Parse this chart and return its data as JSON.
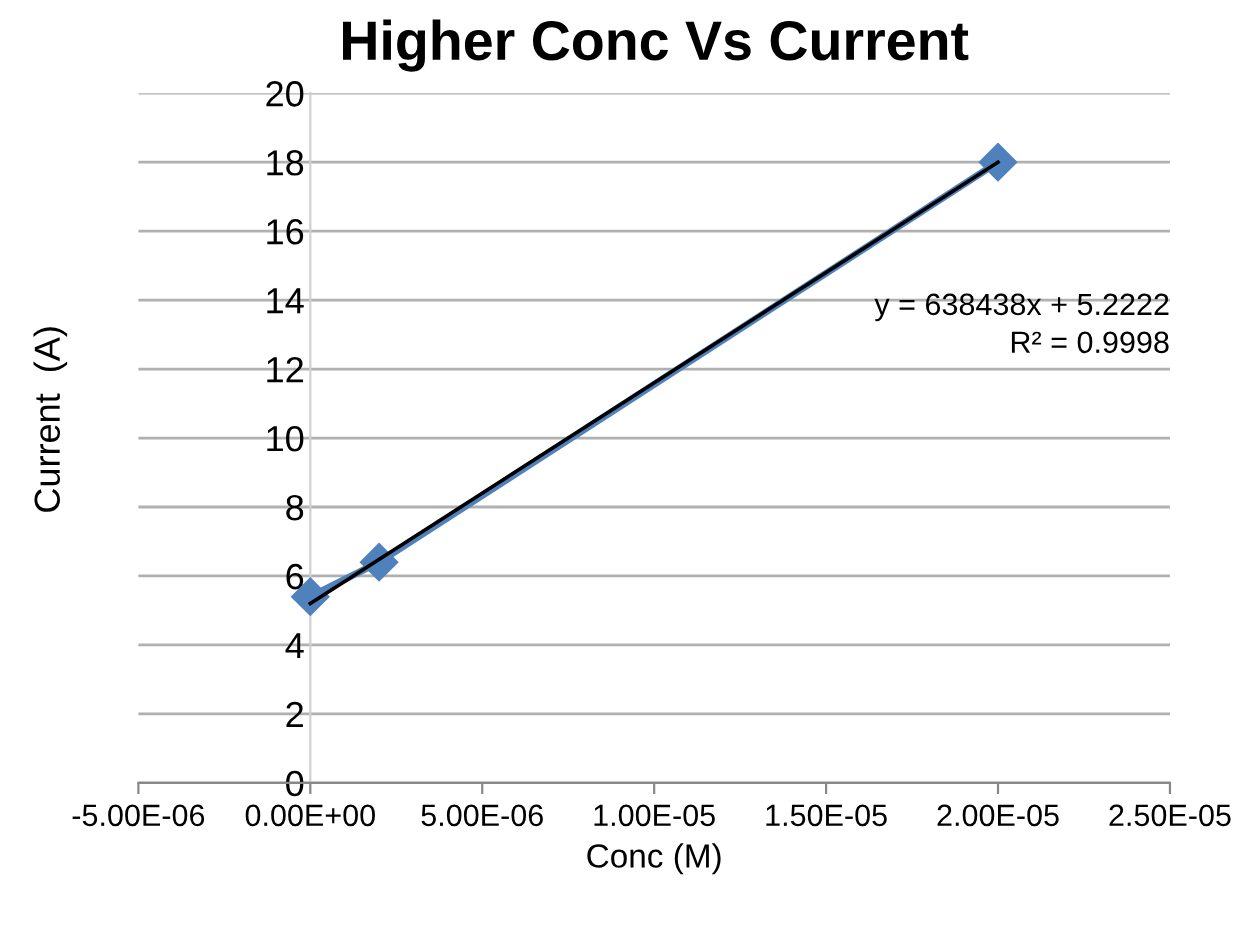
{
  "chart_data": {
    "type": "line",
    "title": "Higher Conc Vs Current",
    "xlabel": "Conc (M)",
    "ylabel": "Current  (A)",
    "x": [
      0,
      2e-06,
      2e-05
    ],
    "series": [
      {
        "color": "#4f81bd",
        "marker": "diamond",
        "values": [
          5.4,
          6.4,
          18.0
        ]
      },
      {
        "color": "#000000",
        "marker": "none",
        "x": [
          0,
          2e-05
        ],
        "values": [
          5.2,
          18.0
        ]
      }
    ],
    "xlim": [
      -5e-06,
      2.5e-05
    ],
    "xticks": [
      {
        "value": -5e-06,
        "label": "-5.00E-06"
      },
      {
        "value": 0,
        "label": "0.00E+00"
      },
      {
        "value": 5e-06,
        "label": "5.00E-06"
      },
      {
        "value": 1e-05,
        "label": "1.00E-05"
      },
      {
        "value": 1.5e-05,
        "label": "1.50E-05"
      },
      {
        "value": 2e-05,
        "label": "2.00E-05"
      },
      {
        "value": 2.5e-05,
        "label": "2.50E-05"
      }
    ],
    "ylim": [
      0,
      20
    ],
    "yticks": [
      0,
      2,
      4,
      6,
      8,
      10,
      12,
      14,
      16,
      18,
      20
    ],
    "grid": "y",
    "legend": false,
    "annotations": [
      "y = 638438x + 5.2222",
      "R² = 0.9998"
    ]
  }
}
